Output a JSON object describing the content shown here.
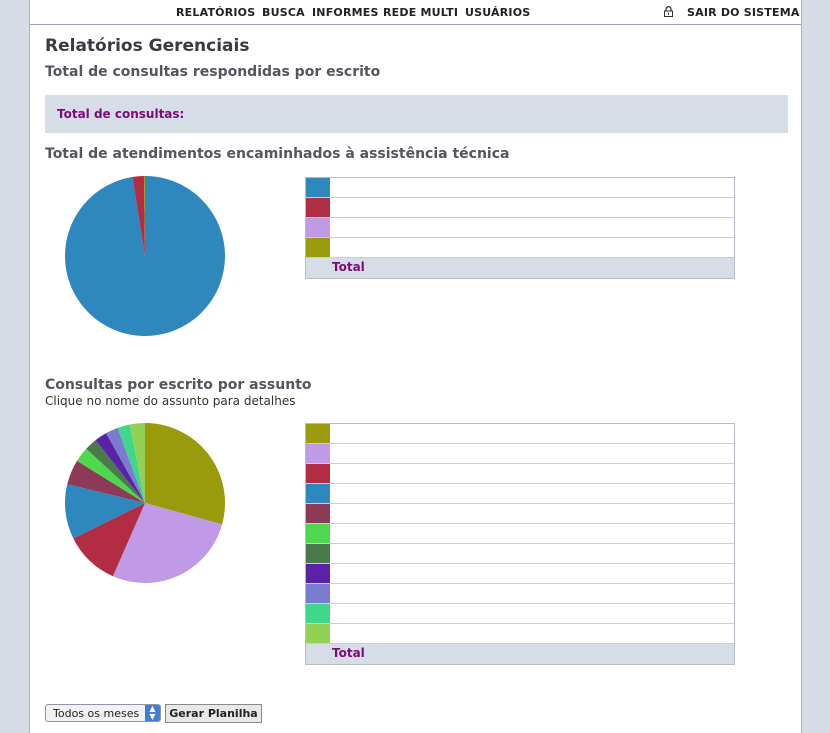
{
  "nav": {
    "items": [
      "RELATÓRIOS",
      "BUSCA",
      "INFORMES",
      "REDE MULTI",
      "USUÁRIOS"
    ],
    "logout": "SAIR DO SISTEMA",
    "lock_icon": "lock-icon"
  },
  "page_title": "Relatórios Gerenciais",
  "subtitle": "Total de consultas respondidas por escrito",
  "total_box_label": "Total de consultas:",
  "section1": {
    "title": "Total de atendimentos encaminhados à assistência técnica",
    "total_label": "Total",
    "colors": [
      "#2e88be",
      "#b22d44",
      "#c09ae6",
      "#9a9a0d"
    ]
  },
  "section2": {
    "title": "Consultas por escrito por assunto",
    "note": "Clique no nome do assunto para detalhes",
    "total_label": "Total",
    "colors": [
      "#9a9a0d",
      "#c09ae6",
      "#b22d44",
      "#2e88be",
      "#8c3a55",
      "#4ed84e",
      "#4a7a4a",
      "#5a22a8",
      "#7b7bd0",
      "#3fd88a",
      "#92d056"
    ]
  },
  "controls": {
    "period_select": "Todos os meses",
    "generate_button": "Gerar Planilha"
  },
  "chart_data": [
    {
      "type": "pie",
      "title": "Total de atendimentos encaminhados à assistência técnica",
      "values": [
        97.5,
        2.3,
        0,
        0.2
      ],
      "colors": [
        "#2e88be",
        "#b22d44",
        "#c09ae6",
        "#9a9a0d"
      ]
    },
    {
      "type": "pie",
      "title": "Consultas por escrito por assunto",
      "values": [
        29,
        27,
        11,
        11,
        5,
        3,
        2.5,
        2.5,
        2.5,
        2.5,
        3
      ],
      "colors": [
        "#9a9a0d",
        "#c09ae6",
        "#b22d44",
        "#2e88be",
        "#8c3a55",
        "#4ed84e",
        "#4a7a4a",
        "#5a22a8",
        "#7b7bd0",
        "#3fd88a",
        "#92d056"
      ]
    }
  ]
}
